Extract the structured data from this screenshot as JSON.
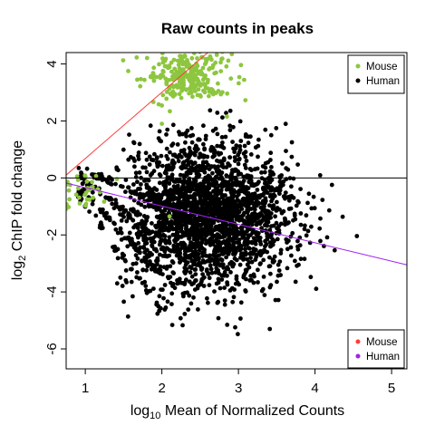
{
  "chart_data": {
    "type": "scatter",
    "title": "Raw counts in peaks",
    "xlabel_prefix": "log",
    "xlabel_sub": "10",
    "xlabel_rest": " Mean of Normalized Counts",
    "ylabel_prefix": "log",
    "ylabel_sub": "2",
    "ylabel_rest": " ChIP fold change",
    "xlim": [
      0.75,
      5.2
    ],
    "ylim": [
      -6.7,
      4.4
    ],
    "x_ticks": [
      1,
      2,
      3,
      4,
      5
    ],
    "y_ticks": [
      4,
      2,
      0,
      -2,
      -4,
      -6
    ],
    "x_tick_labels": [
      "1",
      "2",
      "3",
      "4",
      "5"
    ],
    "y_tick_labels": [
      "4",
      "2",
      "0",
      "-2",
      "-4",
      "-6"
    ],
    "grid": false,
    "colors": {
      "human_points": "#000000",
      "mouse_points": "#8dc63f",
      "mouse_line": "#ff3b3b",
      "human_line": "#a020f0",
      "zero_line": "#000000"
    },
    "series": [
      {
        "name": "Human",
        "kind": "points",
        "color": "#000000",
        "cloud": {
          "center": [
            2.6,
            -1.3
          ],
          "spread": [
            0.55,
            1.25
          ],
          "count": 2400
        },
        "low_count_tail": {
          "x_range": [
            0.9,
            2.0
          ],
          "count": 220
        }
      },
      {
        "name": "Mouse",
        "kind": "points",
        "color": "#8dc63f",
        "clusters": [
          {
            "center": [
              2.35,
              3.6
            ],
            "spread": [
              0.28,
              0.45
            ],
            "count": 260
          },
          {
            "center": [
              1.0,
              -0.4
            ],
            "spread": [
              0.18,
              0.35
            ],
            "count": 35
          }
        ],
        "extra_points": [
          [
            2.1,
            -1.35
          ],
          [
            2.55,
            3.3
          ],
          [
            2.85,
            2.15
          ],
          [
            2.0,
            1.9
          ],
          [
            2.4,
            2.85
          ]
        ]
      }
    ],
    "reference_lines": [
      {
        "name": "zero",
        "color": "#000000",
        "y_intercept": 0,
        "slope": 0
      },
      {
        "name": "Mouse",
        "color": "#ff3b3b",
        "points": [
          [
            0.75,
            0.1
          ],
          [
            2.6,
            4.4
          ]
        ]
      },
      {
        "name": "Human",
        "color": "#a020f0",
        "points": [
          [
            0.75,
            -0.18
          ],
          [
            5.2,
            -3.05
          ]
        ]
      }
    ],
    "legends": [
      {
        "position": "top-right",
        "symbol": "points",
        "entries": [
          {
            "label": "Mouse",
            "color": "#8dc63f"
          },
          {
            "label": "Human",
            "color": "#000000"
          }
        ]
      },
      {
        "position": "bottom-right",
        "symbol": "points",
        "entries": [
          {
            "label": "Mouse",
            "color": "#ff3b3b"
          },
          {
            "label": "Human",
            "color": "#a020f0"
          }
        ]
      }
    ]
  }
}
